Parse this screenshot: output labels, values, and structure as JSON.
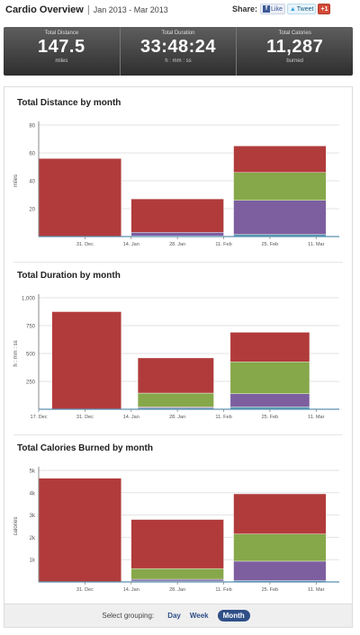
{
  "header": {
    "title": "Cardio Overview",
    "separator": "|",
    "date_range": "Jan 2013 - Mar 2013",
    "share_label": "Share:",
    "like_label": "Like",
    "tweet_label": "Tweet",
    "plus_label": "+1"
  },
  "stats": [
    {
      "label": "Total Distance",
      "value": "147.5",
      "unit": "miles"
    },
    {
      "label": "Total Duration",
      "value": "33:48:24",
      "unit": "h : mm : ss"
    },
    {
      "label": "Total Calories",
      "value": "11,287",
      "unit": "burned"
    }
  ],
  "grouping": {
    "label": "Select grouping:",
    "options": [
      "Day",
      "Week",
      "Month"
    ],
    "selected": "Month"
  },
  "colors": {
    "red": "#b13b3b",
    "green": "#86a84a",
    "purple": "#7d5fa0",
    "teal": "#4f9db0"
  },
  "chart_data": [
    {
      "type": "bar",
      "title": "Total Distance by month",
      "ylabel": "miles",
      "ylim": [
        0,
        80
      ],
      "yticks": [
        20,
        40,
        60,
        80
      ],
      "ytick_labels": [
        "20",
        "40",
        "60",
        "80"
      ],
      "xlim": [
        "2012-12-17",
        "2013-03-18"
      ],
      "xticks": [
        "2012-12-31",
        "2013-01-14",
        "2013-01-28",
        "2013-02-11",
        "2013-02-25",
        "2013-03-11"
      ],
      "xtick_labels": [
        "31. Dec",
        "14. Jan",
        "28. Jan",
        "11. Feb",
        "25. Feb",
        "11. Mar"
      ],
      "bars": [
        {
          "start": "2012-12-17",
          "end": "2013-01-11",
          "segments": [
            {
              "value": 56,
              "color": "red"
            }
          ]
        },
        {
          "start": "2013-01-14",
          "end": "2013-02-11",
          "segments": [
            {
              "value": 0.5,
              "color": "teal"
            },
            {
              "value": 2.5,
              "color": "purple"
            },
            {
              "value": 24,
              "color": "red"
            }
          ]
        },
        {
          "start": "2013-02-14",
          "end": "2013-03-14",
          "segments": [
            {
              "value": 1.5,
              "color": "teal"
            },
            {
              "value": 24.5,
              "color": "purple"
            },
            {
              "value": 20,
              "color": "green"
            },
            {
              "value": 19,
              "color": "red"
            }
          ]
        }
      ]
    },
    {
      "type": "bar",
      "title": "Total Duration by month",
      "ylabel": "h : mm : ss",
      "ylim": [
        0,
        1000
      ],
      "yticks": [
        250,
        500,
        750,
        1000
      ],
      "ytick_labels": [
        "250",
        "500",
        "750",
        "1,000"
      ],
      "xlim": [
        "2012-12-17",
        "2013-03-18"
      ],
      "xticks": [
        "2012-12-17",
        "2012-12-31",
        "2013-01-14",
        "2013-01-28",
        "2013-02-11",
        "2013-02-25",
        "2013-03-11"
      ],
      "xtick_labels": [
        "17. Dec",
        "31. Dec",
        "14. Jan",
        "28. Jan",
        "11. Feb",
        "25. Feb",
        "11. Mar"
      ],
      "bars": [
        {
          "start": "2012-12-21",
          "end": "2013-01-11",
          "segments": [
            {
              "value": 875,
              "color": "red"
            }
          ]
        },
        {
          "start": "2013-01-16",
          "end": "2013-02-08",
          "segments": [
            {
              "value": 10,
              "color": "teal"
            },
            {
              "value": 10,
              "color": "purple"
            },
            {
              "value": 125,
              "color": "green"
            },
            {
              "value": 315,
              "color": "red"
            }
          ]
        },
        {
          "start": "2013-02-13",
          "end": "2013-03-09",
          "segments": [
            {
              "value": 20,
              "color": "teal"
            },
            {
              "value": 120,
              "color": "purple"
            },
            {
              "value": 285,
              "color": "green"
            },
            {
              "value": 265,
              "color": "red"
            }
          ]
        }
      ]
    },
    {
      "type": "bar",
      "title": "Total Calories Burned by month",
      "ylabel": "calories",
      "ylim": [
        0,
        5000
      ],
      "yticks": [
        1000,
        2000,
        3000,
        4000,
        5000
      ],
      "ytick_labels": [
        "1k",
        "2k",
        "3k",
        "4k",
        "5k"
      ],
      "xlim": [
        "2012-12-17",
        "2013-03-18"
      ],
      "xticks": [
        "2012-12-31",
        "2013-01-14",
        "2013-01-28",
        "2013-02-11",
        "2013-02-25",
        "2013-03-11"
      ],
      "xtick_labels": [
        "31. Dec",
        "14. Jan",
        "28. Jan",
        "11. Feb",
        "25. Feb",
        "11. Mar"
      ],
      "bars": [
        {
          "start": "2012-12-17",
          "end": "2013-01-11",
          "segments": [
            {
              "value": 4650,
              "color": "red"
            }
          ]
        },
        {
          "start": "2013-01-14",
          "end": "2013-02-11",
          "segments": [
            {
              "value": 40,
              "color": "teal"
            },
            {
              "value": 80,
              "color": "purple"
            },
            {
              "value": 480,
              "color": "green"
            },
            {
              "value": 2200,
              "color": "red"
            }
          ]
        },
        {
          "start": "2013-02-14",
          "end": "2013-03-14",
          "segments": [
            {
              "value": 60,
              "color": "teal"
            },
            {
              "value": 870,
              "color": "purple"
            },
            {
              "value": 1220,
              "color": "green"
            },
            {
              "value": 1800,
              "color": "red"
            }
          ]
        }
      ]
    }
  ]
}
